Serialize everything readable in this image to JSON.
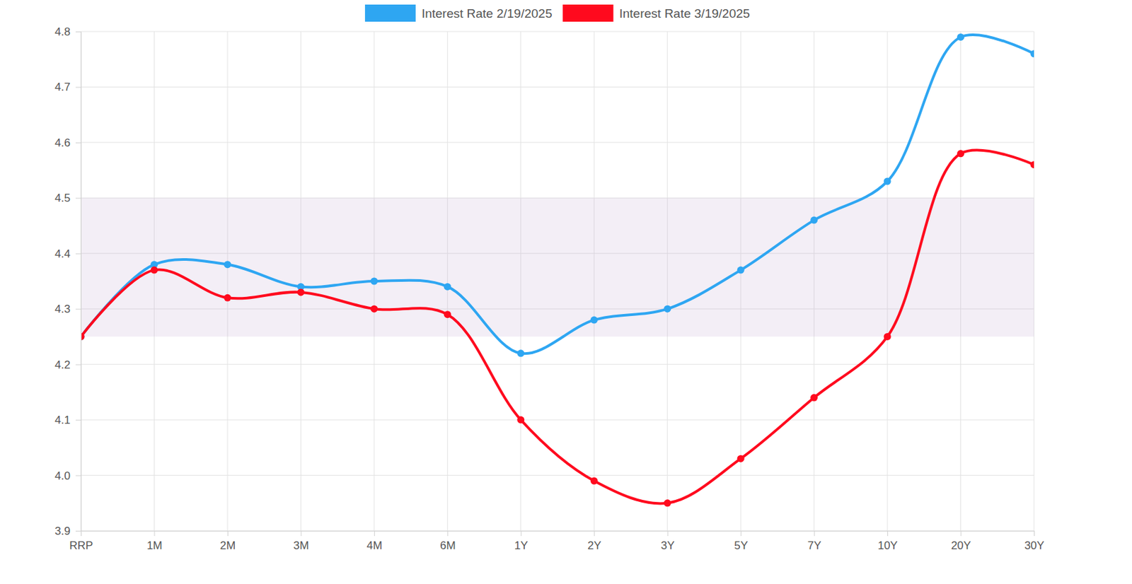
{
  "chart_data": {
    "type": "line",
    "categories": [
      "RRP",
      "1M",
      "2M",
      "3M",
      "4M",
      "6M",
      "1Y",
      "2Y",
      "3Y",
      "5Y",
      "7Y",
      "10Y",
      "20Y",
      "30Y"
    ],
    "series": [
      {
        "name": "Interest Rate 2/19/2025",
        "color": "#2ea6f2",
        "marker": "circle",
        "values": [
          4.25,
          4.38,
          4.38,
          4.34,
          4.35,
          4.34,
          4.22,
          4.28,
          4.3,
          4.37,
          4.46,
          4.53,
          4.79,
          4.76
        ]
      },
      {
        "name": "Interest Rate 3/19/2025",
        "color": "#ff0a1e",
        "marker": "circle",
        "values": [
          4.25,
          4.37,
          4.32,
          4.33,
          4.3,
          4.29,
          4.1,
          3.99,
          3.95,
          4.03,
          4.14,
          4.25,
          4.58,
          4.56
        ]
      }
    ],
    "band": [
      4.25,
      4.5
    ],
    "ylim": [
      3.9,
      4.8
    ],
    "yticks": [
      3.9,
      {
        "value": 4,
        "label": "4.0"
      },
      4.1,
      4.2,
      4.3,
      4.4,
      4.5,
      4.6,
      4.7,
      4.8
    ],
    "grid": true,
    "legend": "top"
  }
}
